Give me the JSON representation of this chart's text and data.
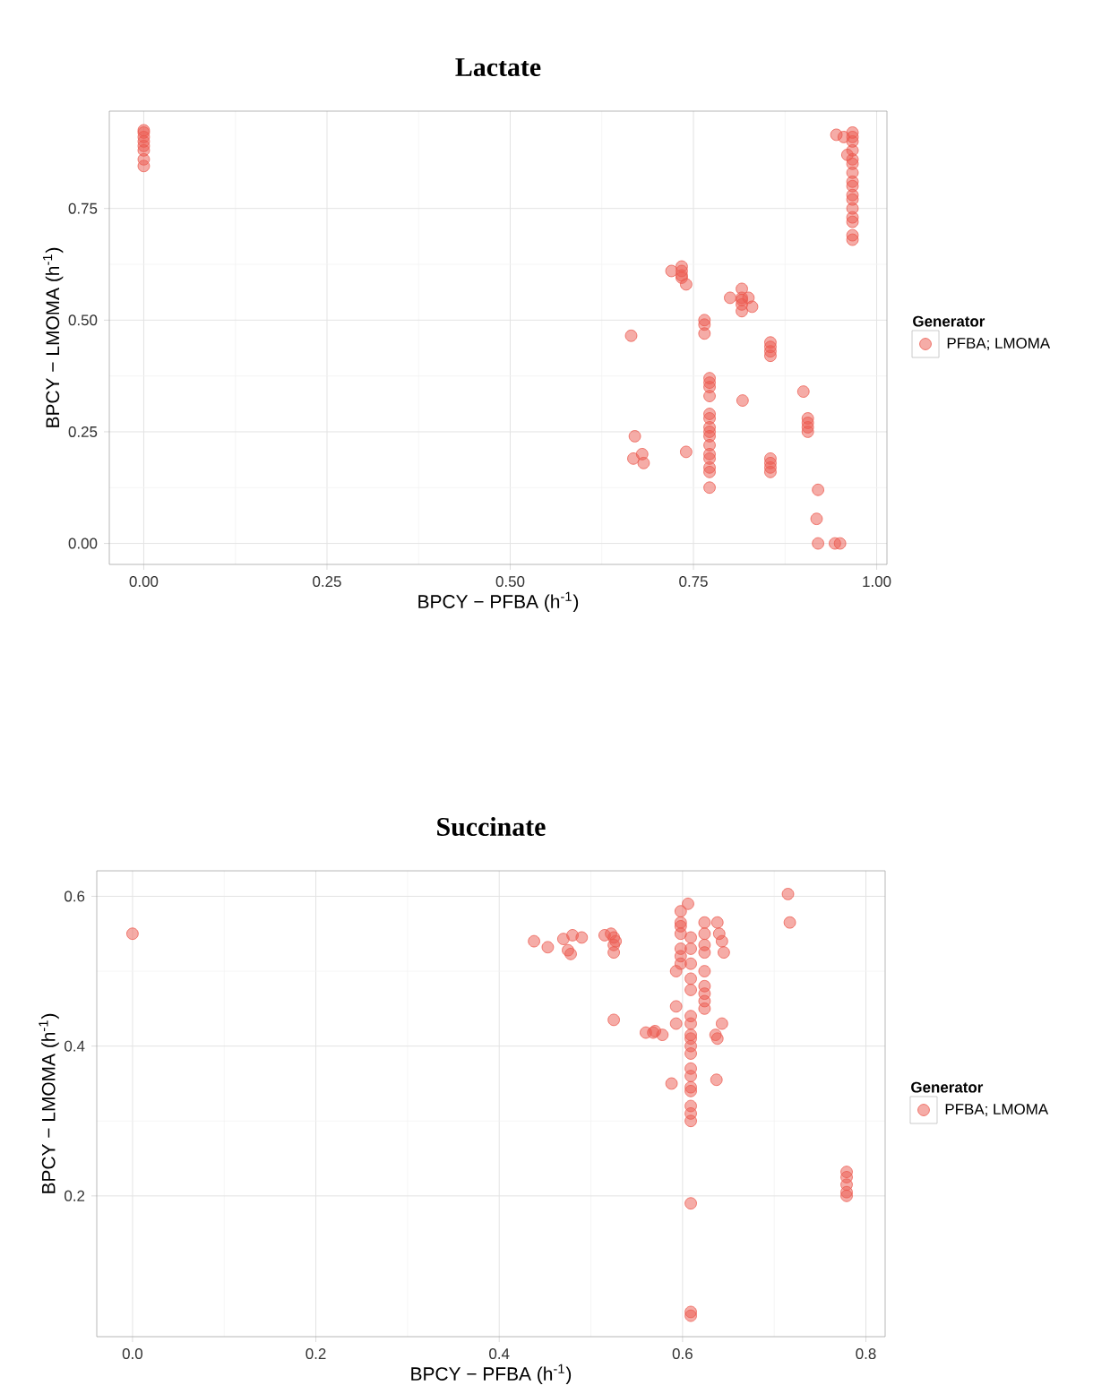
{
  "chart_data": [
    {
      "type": "scatter",
      "title": "Lactate",
      "xlabel": "BPCY − PFBA (h$^{-1}$)",
      "ylabel": "BPCY − LMOMA (h$^{-1}$)",
      "legend_title": "Generator",
      "legend": "right",
      "grid": true,
      "marker": "circle",
      "xlim": [
        -0.047,
        1.014
      ],
      "ylim": [
        -0.047,
        0.968
      ],
      "xticks": [
        {
          "value": 0,
          "label": "0.00"
        },
        {
          "value": 0.25,
          "label": "0.25"
        },
        {
          "value": 0.5,
          "label": "0.50"
        },
        {
          "value": 0.75,
          "label": "0.75"
        },
        {
          "value": 1,
          "label": "1.00"
        }
      ],
      "yticks": [
        {
          "value": 0,
          "label": "0.00"
        },
        {
          "value": 0.25,
          "label": "0.25"
        },
        {
          "value": 0.5,
          "label": "0.50"
        },
        {
          "value": 0.75,
          "label": "0.75"
        }
      ],
      "series": [
        {
          "name": "PFBA; LMOMA",
          "color": "#ec5a4f",
          "x": [
            0,
            0,
            0,
            0,
            0,
            0,
            0,
            0,
            0.967,
            0.967,
            0.967,
            0.967,
            0.967,
            0.967,
            0.967,
            0.967,
            0.967,
            0.967,
            0.967,
            0.967,
            0.967,
            0.967,
            0.967,
            0.967,
            0.945,
            0.96,
            0.955,
            0.734,
            0.734,
            0.734,
            0.734,
            0.74,
            0.72,
            0.816,
            0.816,
            0.816,
            0.816,
            0.816,
            0.825,
            0.83,
            0.8,
            0.765,
            0.765,
            0.765,
            0.665,
            0.772,
            0.772,
            0.772,
            0.772,
            0.772,
            0.772,
            0.772,
            0.772,
            0.772,
            0.772,
            0.772,
            0.772,
            0.772,
            0.772,
            0.772,
            0.817,
            0.855,
            0.855,
            0.855,
            0.855,
            0.855,
            0.855,
            0.855,
            0.855,
            0.9,
            0.906,
            0.906,
            0.906,
            0.906,
            0.92,
            0.918,
            0.92,
            0.943,
            0.95,
            0.67,
            0.668,
            0.68,
            0.682,
            0.74
          ],
          "values": [
            0.925,
            0.92,
            0.91,
            0.9,
            0.89,
            0.88,
            0.86,
            0.845,
            0.92,
            0.91,
            0.9,
            0.88,
            0.86,
            0.85,
            0.83,
            0.81,
            0.8,
            0.78,
            0.77,
            0.75,
            0.73,
            0.72,
            0.69,
            0.68,
            0.915,
            0.87,
            0.91,
            0.62,
            0.61,
            0.6,
            0.595,
            0.58,
            0.61,
            0.55,
            0.545,
            0.535,
            0.57,
            0.52,
            0.55,
            0.53,
            0.55,
            0.5,
            0.49,
            0.47,
            0.465,
            0.37,
            0.36,
            0.35,
            0.33,
            0.29,
            0.28,
            0.26,
            0.25,
            0.24,
            0.22,
            0.2,
            0.19,
            0.17,
            0.16,
            0.125,
            0.32,
            0.45,
            0.44,
            0.43,
            0.42,
            0.19,
            0.18,
            0.17,
            0.16,
            0.34,
            0.28,
            0.27,
            0.26,
            0.25,
            0.12,
            0.055,
            0.0,
            0.0,
            0.0,
            0.24,
            0.19,
            0.2,
            0.18,
            0.205
          ]
        }
      ]
    },
    {
      "type": "scatter",
      "title": "Succinate",
      "xlabel": "BPCY − PFBA (h$^{-1}$)",
      "ylabel": "BPCY − LMOMA (h$^{-1}$)",
      "legend_title": "Generator",
      "legend": "right",
      "grid": true,
      "marker": "circle",
      "xlim": [
        -0.039,
        0.821
      ],
      "ylim": [
        0.012,
        0.634
      ],
      "xticks": [
        {
          "value": 0,
          "label": "0.0"
        },
        {
          "value": 0.2,
          "label": "0.2"
        },
        {
          "value": 0.4,
          "label": "0.4"
        },
        {
          "value": 0.6,
          "label": "0.6"
        },
        {
          "value": 0.8,
          "label": "0.8"
        }
      ],
      "yticks": [
        0.2,
        0.4,
        0.6
      ],
      "series": [
        {
          "name": "PFBA; LMOMA",
          "color": "#ec5a4f",
          "x": [
            0.0,
            0.438,
            0.453,
            0.47,
            0.475,
            0.48,
            0.49,
            0.478,
            0.515,
            0.522,
            0.525,
            0.525,
            0.525,
            0.527,
            0.525,
            0.56,
            0.57,
            0.568,
            0.578,
            0.598,
            0.598,
            0.598,
            0.598,
            0.598,
            0.598,
            0.598,
            0.593,
            0.606,
            0.593,
            0.593,
            0.588,
            0.609,
            0.609,
            0.609,
            0.609,
            0.609,
            0.609,
            0.609,
            0.609,
            0.609,
            0.609,
            0.609,
            0.609,
            0.609,
            0.609,
            0.609,
            0.609,
            0.609,
            0.609,
            0.609,
            0.609,
            0.609,
            0.624,
            0.624,
            0.624,
            0.624,
            0.624,
            0.624,
            0.624,
            0.624,
            0.624,
            0.638,
            0.64,
            0.643,
            0.645,
            0.643,
            0.636,
            0.638,
            0.637,
            0.715,
            0.717,
            0.779,
            0.779,
            0.779,
            0.779,
            0.779
          ],
          "values": [
            0.55,
            0.54,
            0.532,
            0.543,
            0.528,
            0.548,
            0.545,
            0.523,
            0.548,
            0.55,
            0.545,
            0.535,
            0.525,
            0.54,
            0.435,
            0.418,
            0.42,
            0.418,
            0.415,
            0.58,
            0.565,
            0.56,
            0.55,
            0.53,
            0.52,
            0.51,
            0.5,
            0.59,
            0.453,
            0.43,
            0.35,
            0.545,
            0.53,
            0.51,
            0.49,
            0.475,
            0.44,
            0.43,
            0.415,
            0.41,
            0.4,
            0.39,
            0.37,
            0.36,
            0.345,
            0.34,
            0.32,
            0.31,
            0.3,
            0.19,
            0.045,
            0.04,
            0.55,
            0.535,
            0.525,
            0.5,
            0.48,
            0.47,
            0.46,
            0.45,
            0.565,
            0.565,
            0.55,
            0.54,
            0.525,
            0.43,
            0.415,
            0.41,
            0.355,
            0.603,
            0.565,
            0.232,
            0.225,
            0.215,
            0.205,
            0.2
          ]
        }
      ]
    }
  ]
}
